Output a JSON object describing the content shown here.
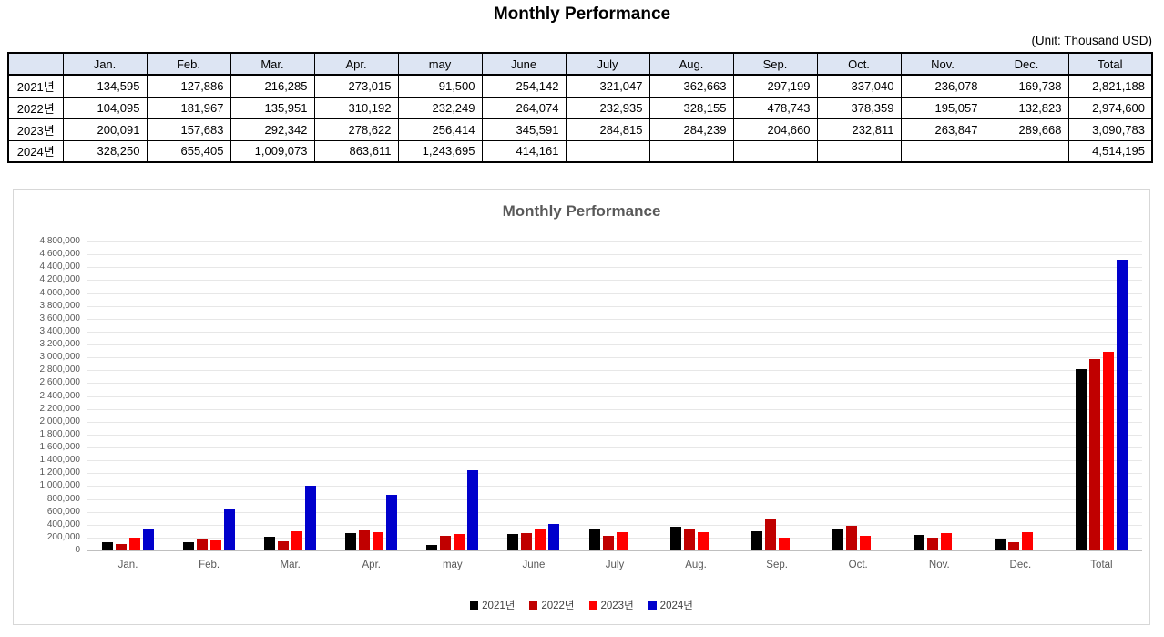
{
  "page": {
    "title": "Monthly Performance",
    "unit_label": "(Unit: Thousand USD)"
  },
  "table": {
    "columns": [
      "",
      "Jan.",
      "Feb.",
      "Mar.",
      "Apr.",
      "may",
      "June",
      "July",
      "Aug.",
      "Sep.",
      "Oct.",
      "Nov.",
      "Dec.",
      "Total"
    ],
    "rows": [
      {
        "label": "2021년",
        "values": [
          "134,595",
          "127,886",
          "216,285",
          "273,015",
          "91,500",
          "254,142",
          "321,047",
          "362,663",
          "297,199",
          "337,040",
          "236,078",
          "169,738",
          "2,821,188"
        ]
      },
      {
        "label": "2022년",
        "values": [
          "104,095",
          "181,967",
          "135,951",
          "310,192",
          "232,249",
          "264,074",
          "232,935",
          "328,155",
          "478,743",
          "378,359",
          "195,057",
          "132,823",
          "2,974,600"
        ]
      },
      {
        "label": "2023년",
        "values": [
          "200,091",
          "157,683",
          "292,342",
          "278,622",
          "256,414",
          "345,591",
          "284,815",
          "284,239",
          "204,660",
          "232,811",
          "263,847",
          "289,668",
          "3,090,783"
        ]
      },
      {
        "label": "2024년",
        "values": [
          "328,250",
          "655,405",
          "1,009,073",
          "863,611",
          "1,243,695",
          "414,161",
          "",
          "",
          "",
          "",
          "",
          "",
          "4,514,195"
        ]
      }
    ]
  },
  "chart_data": {
    "type": "bar",
    "title": "Monthly Performance",
    "categories": [
      "Jan.",
      "Feb.",
      "Mar.",
      "Apr.",
      "may",
      "June",
      "July",
      "Aug.",
      "Sep.",
      "Oct.",
      "Nov.",
      "Dec.",
      "Total"
    ],
    "series": [
      {
        "name": "2021년",
        "color": "#000000",
        "values": [
          134595,
          127886,
          216285,
          273015,
          91500,
          254142,
          321047,
          362663,
          297199,
          337040,
          236078,
          169738,
          2821188
        ]
      },
      {
        "name": "2022년",
        "color": "#c00000",
        "values": [
          104095,
          181967,
          135951,
          310192,
          232249,
          264074,
          232935,
          328155,
          478743,
          378359,
          195057,
          132823,
          2974600
        ]
      },
      {
        "name": "2023년",
        "color": "#ff0000",
        "values": [
          200091,
          157683,
          292342,
          278622,
          256414,
          345591,
          284815,
          284239,
          204660,
          232811,
          263847,
          289668,
          3090783
        ]
      },
      {
        "name": "2024년",
        "color": "#0000cc",
        "values": [
          328250,
          655405,
          1009073,
          863611,
          1243695,
          414161,
          null,
          null,
          null,
          null,
          null,
          null,
          4514195
        ]
      }
    ],
    "ylim": [
      0,
      4800000
    ],
    "ytick_step": 200000,
    "grid": true,
    "legend_position": "bottom"
  }
}
